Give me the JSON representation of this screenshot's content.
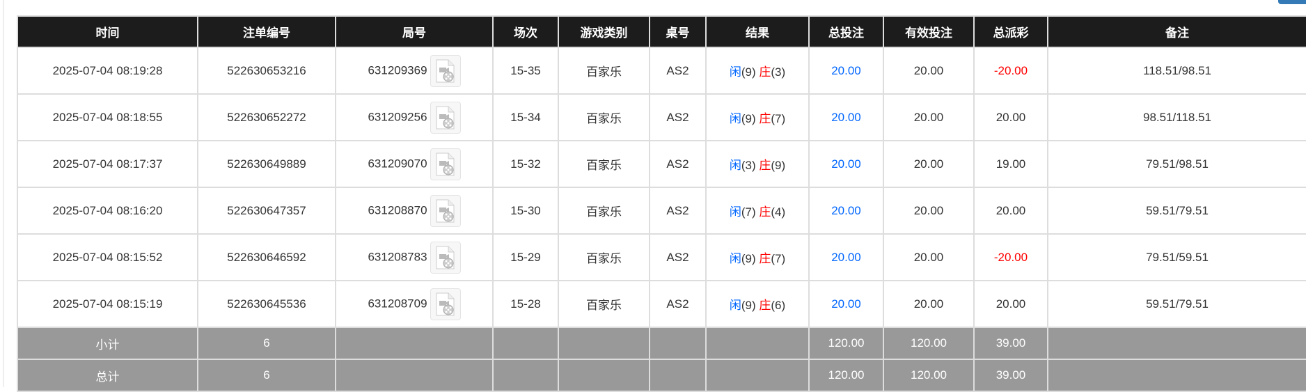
{
  "headers": [
    "时间",
    "注单编号",
    "局号",
    "场次",
    "游戏类别",
    "桌号",
    "结果",
    "总投注",
    "有效投注",
    "总派彩",
    "备注"
  ],
  "rows": [
    {
      "time": "2025-07-04 08:19:28",
      "bet_id": "522630653216",
      "round": "631209369",
      "session": "15-35",
      "game": "百家乐",
      "table": "AS2",
      "player_label": "闲",
      "player": "(9)",
      "banker_label": "庄",
      "banker": "(3)",
      "total_bet": "20.00",
      "valid_bet": "20.00",
      "payout": "-20.00",
      "payout_negative": true,
      "note": "118.51/98.51"
    },
    {
      "time": "2025-07-04 08:18:55",
      "bet_id": "522630652272",
      "round": "631209256",
      "session": "15-34",
      "game": "百家乐",
      "table": "AS2",
      "player_label": "闲",
      "player": "(9)",
      "banker_label": "庄",
      "banker": "(7)",
      "total_bet": "20.00",
      "valid_bet": "20.00",
      "payout": "20.00",
      "payout_negative": false,
      "note": "98.51/118.51"
    },
    {
      "time": "2025-07-04 08:17:37",
      "bet_id": "522630649889",
      "round": "631209070",
      "session": "15-32",
      "game": "百家乐",
      "table": "AS2",
      "player_label": "闲",
      "player": "(3)",
      "banker_label": "庄",
      "banker": "(9)",
      "total_bet": "20.00",
      "valid_bet": "20.00",
      "payout": "19.00",
      "payout_negative": false,
      "note": "79.51/98.51"
    },
    {
      "time": "2025-07-04 08:16:20",
      "bet_id": "522630647357",
      "round": "631208870",
      "session": "15-30",
      "game": "百家乐",
      "table": "AS2",
      "player_label": "闲",
      "player": "(7)",
      "banker_label": "庄",
      "banker": "(4)",
      "total_bet": "20.00",
      "valid_bet": "20.00",
      "payout": "20.00",
      "payout_negative": false,
      "note": "59.51/79.51"
    },
    {
      "time": "2025-07-04 08:15:52",
      "bet_id": "522630646592",
      "round": "631208783",
      "session": "15-29",
      "game": "百家乐",
      "table": "AS2",
      "player_label": "闲",
      "player": "(9)",
      "banker_label": "庄",
      "banker": "(7)",
      "total_bet": "20.00",
      "valid_bet": "20.00",
      "payout": "-20.00",
      "payout_negative": true,
      "note": "79.51/59.51"
    },
    {
      "time": "2025-07-04 08:15:19",
      "bet_id": "522630645536",
      "round": "631208709",
      "session": "15-28",
      "game": "百家乐",
      "table": "AS2",
      "player_label": "闲",
      "player": "(9)",
      "banker_label": "庄",
      "banker": "(6)",
      "total_bet": "20.00",
      "valid_bet": "20.00",
      "payout": "20.00",
      "payout_negative": false,
      "note": "59.51/79.51"
    }
  ],
  "summary": [
    {
      "label": "小计",
      "count": "6",
      "total_bet": "120.00",
      "valid_bet": "120.00",
      "payout": "39.00"
    },
    {
      "label": "总计",
      "count": "6",
      "total_bet": "120.00",
      "valid_bet": "120.00",
      "payout": "39.00"
    }
  ],
  "colors": {
    "header_bg": "#1c1c1c",
    "summary_bg": "#999999",
    "blue": "#0066ff",
    "red": "#ff0000"
  }
}
